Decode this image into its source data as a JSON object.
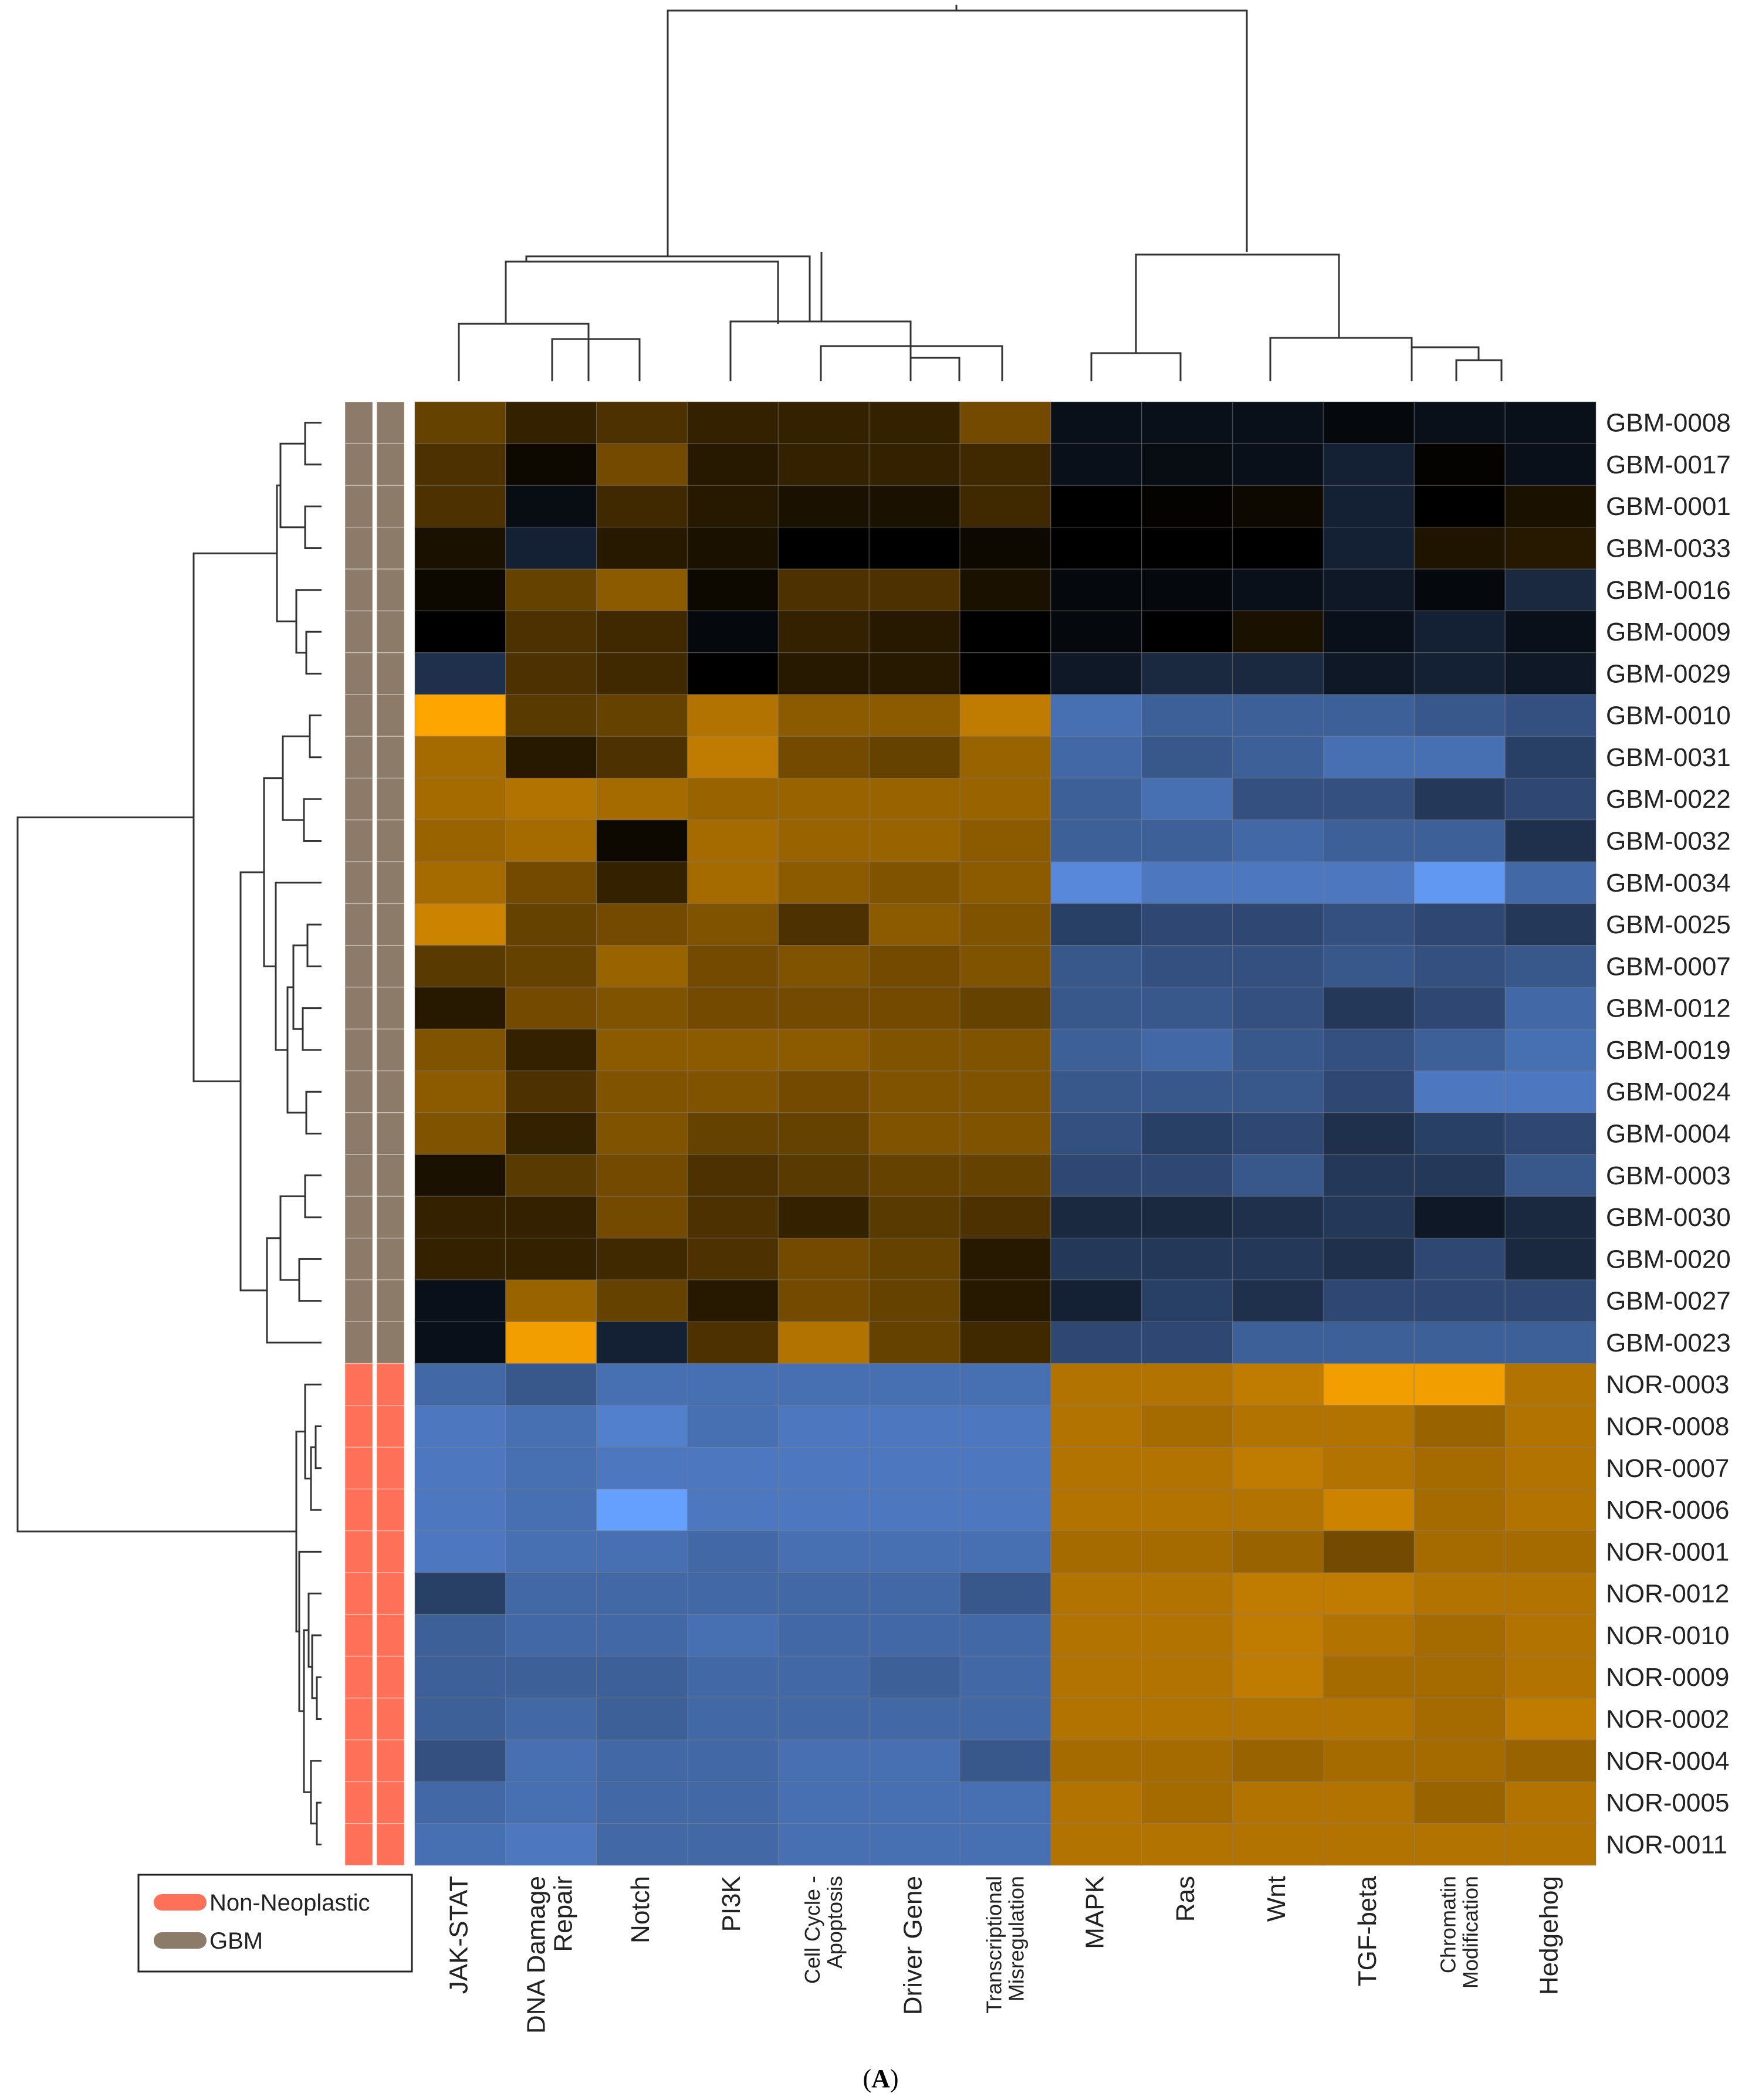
{
  "chart_data": {
    "type": "heatmap",
    "caption": {
      "open": "(",
      "letter": "A",
      "close": ")"
    },
    "columns": [
      {
        "lines": [
          "JAK-STAT"
        ]
      },
      {
        "lines": [
          "DNA Damage",
          "Repair"
        ]
      },
      {
        "lines": [
          "Notch"
        ]
      },
      {
        "lines": [
          "PI3K"
        ]
      },
      {
        "lines": [
          "Cell Cycle -",
          "Apoptosis"
        ]
      },
      {
        "lines": [
          "Driver Gene"
        ]
      },
      {
        "lines": [
          "Transcriptional",
          "Misregulation"
        ]
      },
      {
        "lines": [
          "MAPK"
        ]
      },
      {
        "lines": [
          "Ras"
        ]
      },
      {
        "lines": [
          "Wnt"
        ]
      },
      {
        "lines": [
          "TGF-beta"
        ]
      },
      {
        "lines": [
          "Chromatin",
          "Modification"
        ]
      },
      {
        "lines": [
          "Hedgehog"
        ]
      }
    ],
    "rows": [
      "GBM-0008",
      "GBM-0017",
      "GBM-0001",
      "GBM-0033",
      "GBM-0016",
      "GBM-0009",
      "GBM-0029",
      "GBM-0010",
      "GBM-0031",
      "GBM-0022",
      "GBM-0032",
      "GBM-0034",
      "GBM-0025",
      "GBM-0007",
      "GBM-0012",
      "GBM-0019",
      "GBM-0024",
      "GBM-0004",
      "GBM-0003",
      "GBM-0030",
      "GBM-0020",
      "GBM-0027",
      "GBM-0023",
      "NOR-0003",
      "NOR-0008",
      "NOR-0007",
      "NOR-0006",
      "NOR-0001",
      "NOR-0012",
      "NOR-0010",
      "NOR-0009",
      "NOR-0002",
      "NOR-0004",
      "NOR-0005",
      "NOR-0011"
    ],
    "row_groups": [
      "GBM",
      "GBM",
      "GBM",
      "GBM",
      "GBM",
      "GBM",
      "GBM",
      "GBM",
      "GBM",
      "GBM",
      "GBM",
      "GBM",
      "GBM",
      "GBM",
      "GBM",
      "GBM",
      "GBM",
      "GBM",
      "GBM",
      "GBM",
      "GBM",
      "GBM",
      "GBM",
      "Non-Neoplastic",
      "Non-Neoplastic",
      "Non-Neoplastic",
      "Non-Neoplastic",
      "Non-Neoplastic",
      "Non-Neoplastic",
      "Non-Neoplastic",
      "Non-Neoplastic",
      "Non-Neoplastic",
      "Non-Neoplastic",
      "Non-Neoplastic",
      "Non-Neoplastic"
    ],
    "legend": [
      {
        "label": "Non-Neoplastic",
        "color": "#ff7059"
      },
      {
        "label": "GBM",
        "color": "#8c7b68"
      }
    ],
    "color_scale": {
      "low": "#66a0ff",
      "mid": "#000000",
      "high": "#ffa500"
    },
    "values": [
      [
        0.4,
        0.2,
        0.3,
        0.2,
        0.2,
        0.2,
        0.45,
        -0.1,
        -0.1,
        -0.1,
        -0.05,
        -0.1,
        -0.1
      ],
      [
        0.3,
        0.05,
        0.45,
        0.15,
        0.2,
        0.2,
        0.25,
        -0.1,
        -0.08,
        -0.1,
        -0.2,
        0.02,
        -0.1
      ],
      [
        0.3,
        -0.08,
        0.25,
        0.15,
        0.1,
        0.1,
        0.25,
        0.0,
        0.02,
        0.05,
        -0.2,
        0.0,
        0.1
      ],
      [
        0.1,
        -0.2,
        0.15,
        0.1,
        0.0,
        0.0,
        0.05,
        0.0,
        0.0,
        0.0,
        -0.2,
        0.12,
        0.15
      ],
      [
        0.05,
        0.4,
        0.55,
        0.05,
        0.3,
        0.3,
        0.1,
        -0.05,
        -0.05,
        -0.1,
        -0.15,
        -0.05,
        -0.25
      ],
      [
        0.0,
        0.3,
        0.25,
        -0.05,
        0.2,
        0.15,
        0.0,
        -0.05,
        0.0,
        0.1,
        -0.1,
        -0.2,
        -0.1
      ],
      [
        -0.3,
        0.3,
        0.25,
        0.0,
        0.15,
        0.15,
        0.0,
        -0.15,
        -0.25,
        -0.25,
        -0.15,
        -0.2,
        -0.15
      ],
      [
        1.0,
        0.35,
        0.4,
        0.7,
        0.55,
        0.55,
        0.75,
        -0.7,
        -0.6,
        -0.6,
        -0.6,
        -0.55,
        -0.5
      ],
      [
        0.65,
        0.15,
        0.3,
        0.75,
        0.45,
        0.4,
        0.6,
        -0.65,
        -0.55,
        -0.6,
        -0.7,
        -0.7,
        -0.4
      ],
      [
        0.65,
        0.7,
        0.65,
        0.6,
        0.6,
        0.6,
        0.6,
        -0.6,
        -0.7,
        -0.5,
        -0.5,
        -0.35,
        -0.45
      ],
      [
        0.6,
        0.65,
        0.05,
        0.65,
        0.6,
        0.6,
        0.55,
        -0.6,
        -0.6,
        -0.65,
        -0.6,
        -0.6,
        -0.3
      ],
      [
        0.65,
        0.45,
        0.2,
        0.65,
        0.55,
        0.5,
        0.55,
        -0.85,
        -0.75,
        -0.75,
        -0.75,
        -0.95,
        -0.65
      ],
      [
        0.8,
        0.4,
        0.45,
        0.5,
        0.3,
        0.55,
        0.5,
        -0.4,
        -0.45,
        -0.45,
        -0.5,
        -0.45,
        -0.35
      ],
      [
        0.35,
        0.4,
        0.6,
        0.45,
        0.5,
        0.45,
        0.5,
        -0.55,
        -0.5,
        -0.5,
        -0.55,
        -0.5,
        -0.55
      ],
      [
        0.15,
        0.45,
        0.5,
        0.45,
        0.45,
        0.45,
        0.4,
        -0.55,
        -0.55,
        -0.5,
        -0.35,
        -0.45,
        -0.65
      ],
      [
        0.5,
        0.2,
        0.55,
        0.55,
        0.55,
        0.5,
        0.5,
        -0.6,
        -0.65,
        -0.55,
        -0.5,
        -0.6,
        -0.7
      ],
      [
        0.55,
        0.3,
        0.5,
        0.5,
        0.45,
        0.5,
        0.5,
        -0.55,
        -0.55,
        -0.55,
        -0.45,
        -0.75,
        -0.75
      ],
      [
        0.5,
        0.2,
        0.5,
        0.4,
        0.4,
        0.5,
        0.5,
        -0.5,
        -0.4,
        -0.45,
        -0.3,
        -0.4,
        -0.45
      ],
      [
        0.1,
        0.35,
        0.45,
        0.3,
        0.35,
        0.4,
        0.4,
        -0.45,
        -0.45,
        -0.55,
        -0.35,
        -0.35,
        -0.55
      ],
      [
        0.2,
        0.2,
        0.45,
        0.3,
        0.2,
        0.35,
        0.3,
        -0.25,
        -0.25,
        -0.3,
        -0.35,
        -0.15,
        -0.25
      ],
      [
        0.2,
        0.2,
        0.25,
        0.3,
        0.45,
        0.4,
        0.15,
        -0.35,
        -0.35,
        -0.35,
        -0.3,
        -0.45,
        -0.25
      ],
      [
        -0.1,
        0.6,
        0.4,
        0.15,
        0.45,
        0.4,
        0.15,
        -0.2,
        -0.4,
        -0.3,
        -0.45,
        -0.45,
        -0.45
      ],
      [
        -0.1,
        0.95,
        -0.2,
        0.3,
        0.7,
        0.4,
        0.25,
        -0.45,
        -0.45,
        -0.6,
        -0.6,
        -0.6,
        -0.6
      ],
      [
        -0.65,
        -0.55,
        -0.7,
        -0.7,
        -0.7,
        -0.7,
        -0.7,
        0.7,
        0.7,
        0.75,
        0.95,
        0.95,
        0.7
      ],
      [
        -0.75,
        -0.7,
        -0.8,
        -0.7,
        -0.75,
        -0.75,
        -0.75,
        0.7,
        0.65,
        0.7,
        0.7,
        0.6,
        0.7
      ],
      [
        -0.75,
        -0.7,
        -0.75,
        -0.75,
        -0.75,
        -0.75,
        -0.75,
        0.7,
        0.7,
        0.75,
        0.7,
        0.65,
        0.7
      ],
      [
        -0.75,
        -0.7,
        -1.0,
        -0.75,
        -0.75,
        -0.75,
        -0.75,
        0.7,
        0.7,
        0.7,
        0.8,
        0.65,
        0.7
      ],
      [
        -0.75,
        -0.7,
        -0.7,
        -0.65,
        -0.7,
        -0.7,
        -0.7,
        0.65,
        0.65,
        0.6,
        0.45,
        0.65,
        0.65
      ],
      [
        -0.4,
        -0.65,
        -0.65,
        -0.65,
        -0.65,
        -0.65,
        -0.55,
        0.7,
        0.7,
        0.75,
        0.75,
        0.7,
        0.7
      ],
      [
        -0.6,
        -0.65,
        -0.65,
        -0.7,
        -0.65,
        -0.65,
        -0.65,
        0.7,
        0.7,
        0.75,
        0.7,
        0.65,
        0.7
      ],
      [
        -0.6,
        -0.6,
        -0.6,
        -0.65,
        -0.65,
        -0.6,
        -0.65,
        0.7,
        0.7,
        0.75,
        0.65,
        0.65,
        0.7
      ],
      [
        -0.6,
        -0.65,
        -0.6,
        -0.65,
        -0.65,
        -0.65,
        -0.65,
        0.7,
        0.7,
        0.7,
        0.7,
        0.65,
        0.75
      ],
      [
        -0.5,
        -0.7,
        -0.65,
        -0.65,
        -0.7,
        -0.7,
        -0.55,
        0.65,
        0.65,
        0.6,
        0.65,
        0.65,
        0.6
      ],
      [
        -0.65,
        -0.7,
        -0.65,
        -0.65,
        -0.7,
        -0.7,
        -0.7,
        0.7,
        0.65,
        0.7,
        0.7,
        0.6,
        0.7
      ],
      [
        -0.7,
        -0.75,
        -0.65,
        -0.65,
        -0.7,
        -0.7,
        -0.7,
        0.7,
        0.7,
        0.7,
        0.7,
        0.7,
        0.7
      ]
    ]
  }
}
